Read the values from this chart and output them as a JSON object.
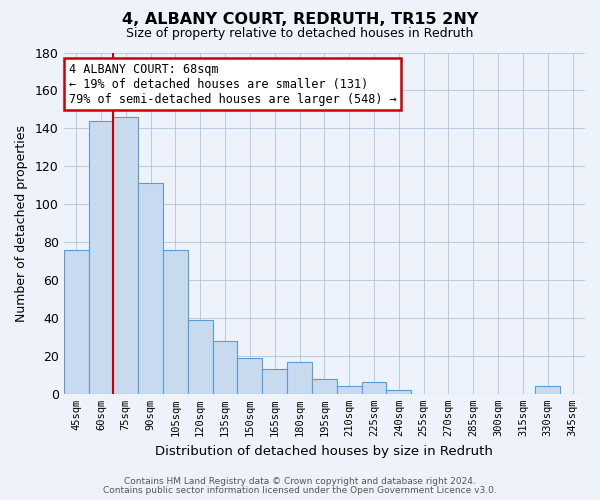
{
  "title": "4, ALBANY COURT, REDRUTH, TR15 2NY",
  "subtitle": "Size of property relative to detached houses in Redruth",
  "xlabel": "Distribution of detached houses by size in Redruth",
  "ylabel": "Number of detached properties",
  "bar_labels": [
    "45sqm",
    "60sqm",
    "75sqm",
    "90sqm",
    "105sqm",
    "120sqm",
    "135sqm",
    "150sqm",
    "165sqm",
    "180sqm",
    "195sqm",
    "210sqm",
    "225sqm",
    "240sqm",
    "255sqm",
    "270sqm",
    "285sqm",
    "300sqm",
    "315sqm",
    "330sqm",
    "345sqm"
  ],
  "bar_values": [
    76,
    144,
    146,
    111,
    76,
    39,
    28,
    19,
    13,
    17,
    8,
    4,
    6,
    2,
    0,
    0,
    0,
    0,
    0,
    4,
    0
  ],
  "bar_color": "#c8daee",
  "bar_edge_color": "#5b9bd5",
  "grid_color": "#c8daee",
  "background_color": "#eef3fb",
  "vline_color": "#cc0000",
  "annotation_title": "4 ALBANY COURT: 68sqm",
  "annotation_line1": "← 19% of detached houses are smaller (131)",
  "annotation_line2": "79% of semi-detached houses are larger (548) →",
  "annotation_box_color": "white",
  "annotation_box_edge": "#cc0000",
  "footer1": "Contains HM Land Registry data © Crown copyright and database right 2024.",
  "footer2": "Contains public sector information licensed under the Open Government Licence v3.0.",
  "ylim": [
    0,
    180
  ],
  "yticks": [
    0,
    20,
    40,
    60,
    80,
    100,
    120,
    140,
    160,
    180
  ]
}
